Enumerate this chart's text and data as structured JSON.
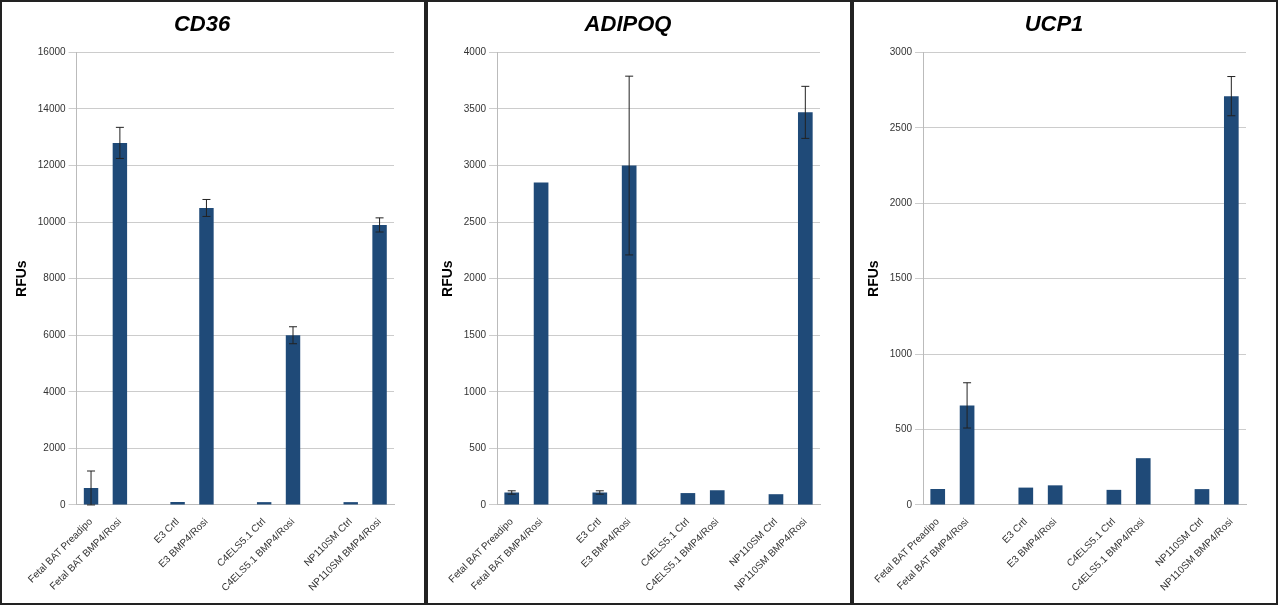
{
  "chart_data": [
    {
      "type": "bar",
      "title": "CD36",
      "ylabel": "RFUs",
      "categories": [
        "Fetal BAT Preadipo",
        "Fetal BAT BMP4/Rosi",
        null,
        "E3 Crtl",
        "E3 BMP4/Rosi",
        null,
        "C4ELS5.1 Ctrl",
        "C4ELS5.1 BMP4/Rosi",
        null,
        "NP110SM Ctrl",
        "NP110SM BMP4/Rosi"
      ],
      "values": [
        600,
        12800,
        null,
        100,
        10500,
        null,
        100,
        6000,
        null,
        100,
        9900
      ],
      "errors": [
        600,
        550,
        null,
        null,
        300,
        null,
        null,
        300,
        null,
        null,
        250
      ],
      "color": "#1f4a78",
      "ylim": [
        0,
        16000
      ],
      "yticks": [
        0,
        2000,
        4000,
        6000,
        8000,
        10000,
        12000,
        14000,
        16000
      ],
      "grid": "y"
    },
    {
      "type": "bar",
      "title": "ADIPOQ",
      "ylabel": "RFUs",
      "categories": [
        "Fetal BAT Preadipo",
        "Fetal BAT BMP4/Rosi",
        null,
        "E3 Crtl",
        "E3 BMP4/Rosi",
        null,
        "C4ELS5.1 Ctrl",
        "C4ELS5.1 BMP4/Rosi",
        null,
        "NP110SM Ctrl",
        "NP110SM BMP4/Rosi"
      ],
      "values": [
        110,
        2850,
        null,
        110,
        3000,
        null,
        105,
        130,
        null,
        95,
        3470
      ],
      "errors": [
        15,
        null,
        null,
        15,
        790,
        null,
        null,
        null,
        null,
        null,
        230
      ],
      "color": "#1f4a78",
      "ylim": [
        0,
        4000
      ],
      "yticks": [
        0,
        500,
        1000,
        1500,
        2000,
        2500,
        3000,
        3500,
        4000
      ],
      "grid": "y"
    },
    {
      "type": "bar",
      "title": "UCP1",
      "ylabel": "RFUs",
      "categories": [
        "Fetal BAT Preadipo",
        "Fetal BAT BMP4/Rosi",
        null,
        "E3 Crtl",
        "E3 BMP4/Rosi",
        null,
        "C4ELS5.1 Ctrl",
        "C4ELS5.1 BMP4/Rosi",
        null,
        "NP110SM Ctrl",
        "NP110SM BMP4/Rosi"
      ],
      "values": [
        105,
        660,
        null,
        115,
        130,
        null,
        100,
        310,
        null,
        105,
        2710
      ],
      "errors": [
        null,
        150,
        null,
        null,
        null,
        null,
        null,
        null,
        null,
        null,
        130
      ],
      "color": "#1f4a78",
      "ylim": [
        0,
        3000
      ],
      "yticks": [
        0,
        500,
        1000,
        1500,
        2000,
        2500,
        3000
      ],
      "grid": "y"
    }
  ]
}
